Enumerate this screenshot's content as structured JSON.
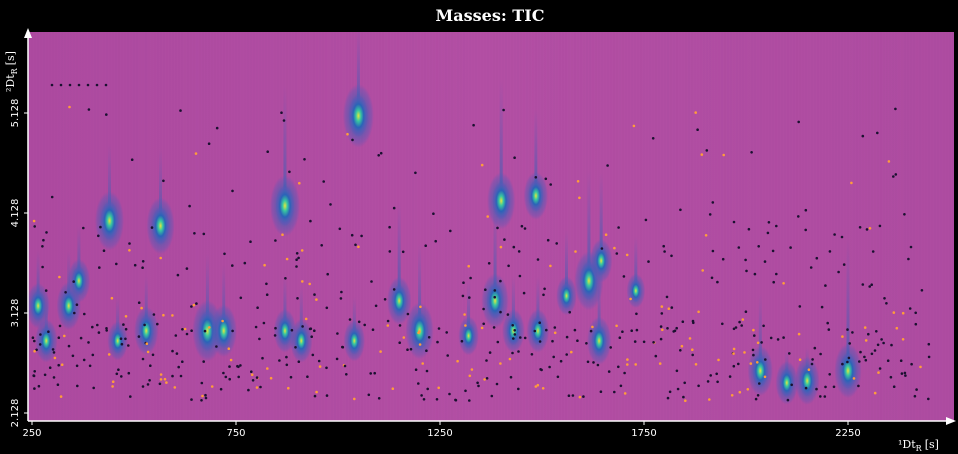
{
  "chart_data": {
    "type": "heatmap",
    "title": "Masses: TIC",
    "xlabel": "¹Dt",
    "xlabel_sub": "R",
    "xlabel_unit": "[s]",
    "ylabel": "²Dt",
    "ylabel_sub": "R",
    "ylabel_unit": "[s]",
    "xlim": [
      250,
      2470
    ],
    "ylim": [
      2.128,
      5.528
    ],
    "x_ticks": [
      250,
      750,
      1250,
      1750,
      2250
    ],
    "y_ticks": [
      2.128,
      3.128,
      4.128,
      5.128
    ],
    "x_tick_labels": [
      "250",
      "750",
      "1250",
      "1750",
      "2250"
    ],
    "y_tick_labels": [
      "2.128",
      "3.128",
      "4.128",
      "5.128"
    ],
    "colors": {
      "background": "#b24fa3",
      "stripe": "#a0469a",
      "peak_low": "#5a57b8",
      "peak_mid": "#2a63b8",
      "peak_high": "#38c8a0",
      "peak_top": "#e6e63c",
      "marker_dark": "#1a1030",
      "marker_orange": "#ff9d3a"
    },
    "peaks": [
      {
        "x": 1050,
        "y": 5.1,
        "intensity": 0.95,
        "tail": 0.4
      },
      {
        "x": 440,
        "y": 4.05,
        "intensity": 0.85,
        "tail": 0.35
      },
      {
        "x": 565,
        "y": 4.0,
        "intensity": 0.8,
        "tail": 0.35
      },
      {
        "x": 870,
        "y": 4.2,
        "intensity": 0.9,
        "tail": 0.55
      },
      {
        "x": 1400,
        "y": 4.25,
        "intensity": 0.8,
        "tail": 0.55
      },
      {
        "x": 1485,
        "y": 4.3,
        "intensity": 0.6,
        "tail": 0.4
      },
      {
        "x": 1385,
        "y": 3.25,
        "intensity": 0.75,
        "tail": 0.45
      },
      {
        "x": 1615,
        "y": 3.45,
        "intensity": 0.85,
        "tail": 0.5
      },
      {
        "x": 1645,
        "y": 3.65,
        "intensity": 0.5,
        "tail": 0.4
      },
      {
        "x": 1150,
        "y": 3.25,
        "intensity": 0.6,
        "tail": 0.45
      },
      {
        "x": 1200,
        "y": 2.95,
        "intensity": 0.8,
        "tail": 0.4
      },
      {
        "x": 265,
        "y": 3.2,
        "intensity": 0.55,
        "tail": 0.25
      },
      {
        "x": 285,
        "y": 2.85,
        "intensity": 0.5,
        "tail": 0.2
      },
      {
        "x": 340,
        "y": 3.2,
        "intensity": 0.6,
        "tail": 0.25
      },
      {
        "x": 365,
        "y": 3.45,
        "intensity": 0.5,
        "tail": 0.25
      },
      {
        "x": 530,
        "y": 2.95,
        "intensity": 0.6,
        "tail": 0.25
      },
      {
        "x": 680,
        "y": 2.95,
        "intensity": 0.9,
        "tail": 0.35
      },
      {
        "x": 720,
        "y": 2.95,
        "intensity": 0.7,
        "tail": 0.3
      },
      {
        "x": 870,
        "y": 2.95,
        "intensity": 0.5,
        "tail": 0.25
      },
      {
        "x": 910,
        "y": 2.85,
        "intensity": 0.5,
        "tail": 0.25
      },
      {
        "x": 1320,
        "y": 2.9,
        "intensity": 0.4,
        "tail": 0.25
      },
      {
        "x": 1430,
        "y": 2.95,
        "intensity": 0.5,
        "tail": 0.25
      },
      {
        "x": 1490,
        "y": 2.95,
        "intensity": 0.5,
        "tail": 0.25
      },
      {
        "x": 1640,
        "y": 2.85,
        "intensity": 0.6,
        "tail": 0.3
      },
      {
        "x": 2035,
        "y": 2.55,
        "intensity": 0.65,
        "tail": 0.35
      },
      {
        "x": 2250,
        "y": 2.55,
        "intensity": 0.75,
        "tail": 0.6
      },
      {
        "x": 2150,
        "y": 2.45,
        "intensity": 0.6,
        "tail": 0.15
      },
      {
        "x": 2100,
        "y": 2.43,
        "intensity": 0.5,
        "tail": 0.15
      },
      {
        "x": 1040,
        "y": 2.85,
        "intensity": 0.45,
        "tail": 0.2
      },
      {
        "x": 460,
        "y": 2.85,
        "intensity": 0.4,
        "tail": 0.2
      },
      {
        "x": 1730,
        "y": 3.35,
        "intensity": 0.3,
        "tail": 0.25
      },
      {
        "x": 1560,
        "y": 3.3,
        "intensity": 0.4,
        "tail": 0.3
      }
    ]
  }
}
